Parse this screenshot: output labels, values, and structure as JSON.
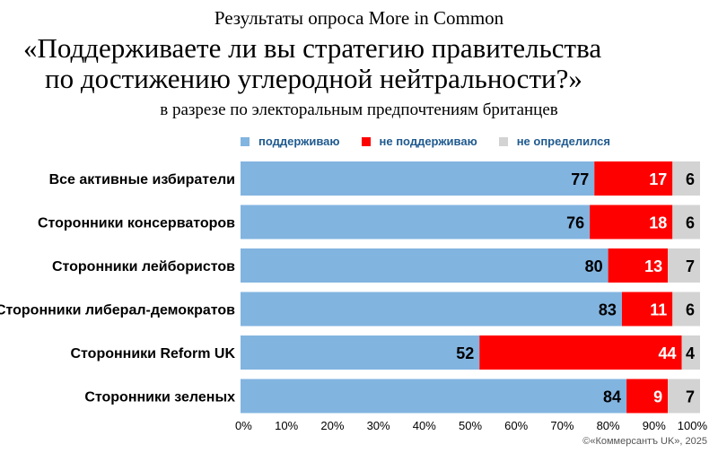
{
  "header": {
    "supertitle": "Результаты опроса More in Common",
    "title_line1": "«Поддерживаете ли вы стратегию правительства",
    "title_line2": "по достижению углеродной нейтральности?»",
    "subtitle": "в разрезе по электоральным предпочтениям британцев"
  },
  "legend": [
    {
      "label": "поддерживаю",
      "color": "#82b4e0"
    },
    {
      "label": "не поддерживаю",
      "color": "#ff0000"
    },
    {
      "label": "не определился",
      "color": "#d3d3d3"
    }
  ],
  "chart_data": {
    "type": "bar",
    "orientation": "horizontal",
    "stacked": true,
    "categories": [
      "Все активные избиратели",
      "Сторонники консерваторов",
      "Сторонники лейбористов",
      "Сторонники либерал-демократов",
      "Сторонники Reform UK",
      "Сторонники зеленых"
    ],
    "series": [
      {
        "name": "поддерживаю",
        "color": "#82b4e0",
        "values": [
          77,
          76,
          80,
          83,
          52,
          84
        ]
      },
      {
        "name": "не поддерживаю",
        "color": "#ff0000",
        "values": [
          17,
          18,
          13,
          11,
          44,
          9
        ]
      },
      {
        "name": "не определился",
        "color": "#d3d3d3",
        "values": [
          6,
          6,
          7,
          6,
          4,
          7
        ]
      }
    ],
    "xlim": [
      0,
      100
    ],
    "xticks": [
      "0%",
      "10%",
      "20%",
      "30%",
      "40%",
      "50%",
      "60%",
      "70%",
      "80%",
      "90%",
      "100%"
    ],
    "legend_position": "top",
    "grid": false
  },
  "credit": "©«Коммерсантъ UK», 2025"
}
